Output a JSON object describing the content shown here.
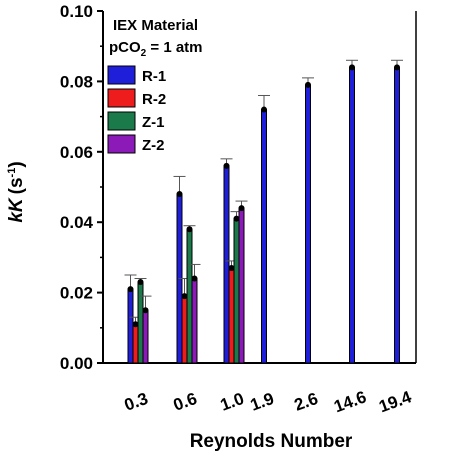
{
  "chart_data": {
    "type": "bar",
    "title": "",
    "xlabel": "Reynolds Number",
    "ylabel_main": "kK",
    "ylabel_unit_base": "(s",
    "ylabel_unit_sup": "-1",
    "ylabel_unit_close": ")",
    "ylim": [
      0,
      0.1
    ],
    "yticks": [
      "0.00",
      "0.02",
      "0.04",
      "0.06",
      "0.08",
      "0.10"
    ],
    "categories": [
      "0.3",
      "0.6",
      "1.0",
      "1.9",
      "2.6",
      "14.6",
      "19.4"
    ],
    "grid": false,
    "legend": {
      "placement": "top-left",
      "title_line1": "IEX Material",
      "title_line2_base": "pCO",
      "title_line2_sub": "2",
      "title_line2_rest": " = 1 atm"
    },
    "series": [
      {
        "name": "R-1",
        "color": "#1f1fd9",
        "values": [
          0.021,
          0.048,
          0.056,
          0.072,
          0.079,
          0.084,
          0.084
        ],
        "errors": [
          0.004,
          0.005,
          0.002,
          0.004,
          0.002,
          0.002,
          0.002
        ]
      },
      {
        "name": "R-2",
        "color": "#ee1c1c",
        "values": [
          0.011,
          0.019,
          0.027,
          null,
          null,
          null,
          null
        ],
        "errors": [
          0.002,
          0.005,
          0.002,
          null,
          null,
          null,
          null
        ]
      },
      {
        "name": "Z-1",
        "color": "#1a7a4a",
        "values": [
          0.023,
          0.038,
          0.041,
          null,
          null,
          null,
          null
        ],
        "errors": [
          0.001,
          0.001,
          0.002,
          null,
          null,
          null,
          null
        ]
      },
      {
        "name": "Z-2",
        "color": "#8b1ab8",
        "values": [
          0.015,
          0.024,
          0.044,
          null,
          null,
          null,
          null
        ],
        "errors": [
          0.004,
          0.004,
          0.002,
          null,
          null,
          null,
          null
        ]
      }
    ]
  }
}
